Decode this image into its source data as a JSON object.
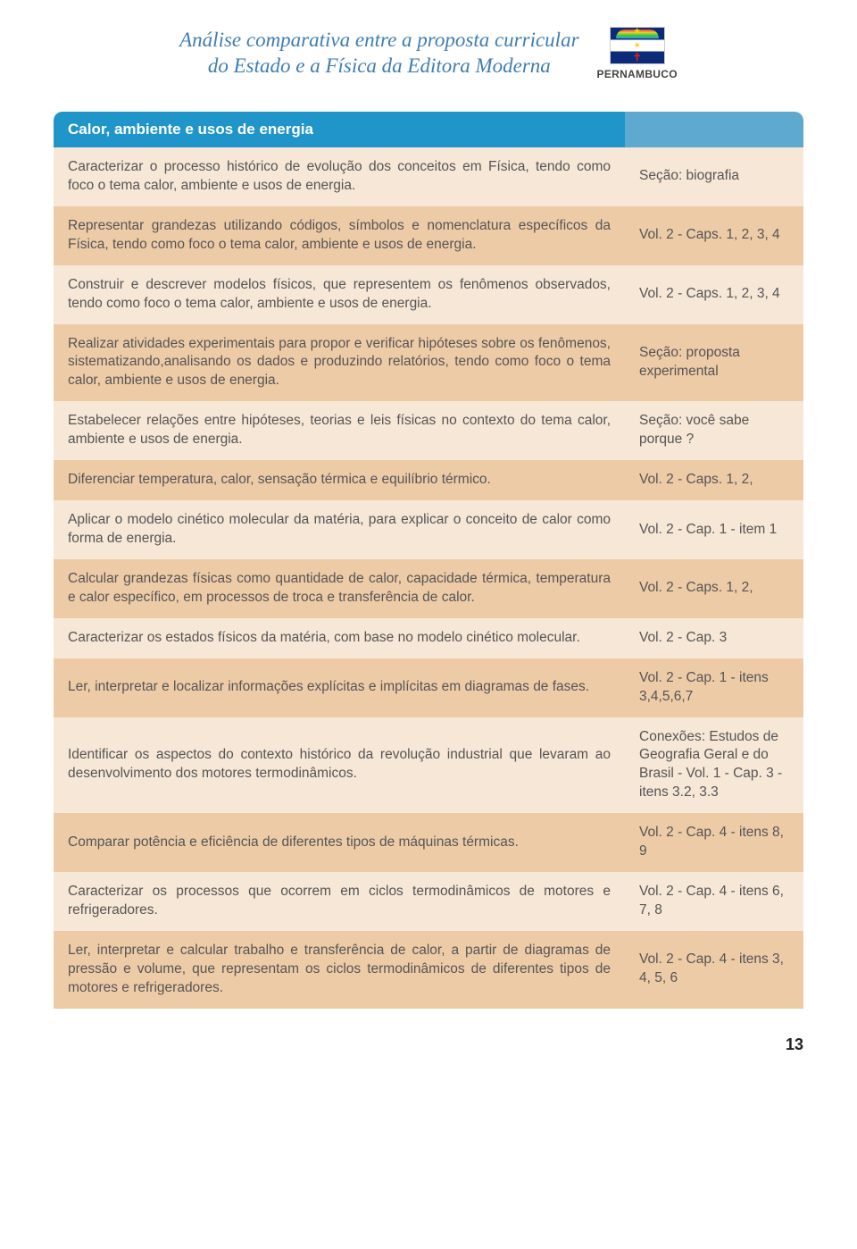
{
  "header": {
    "title_line1": "Análise comparativa entre a proposta curricular",
    "title_line2": "do Estado e a Física da Editora Moderna",
    "state_label": "PERNAMBUCO"
  },
  "section_title": "Calor, ambiente e usos de energia",
  "colors": {
    "header_bg": "#1f95c9",
    "header_right_bg": "#5ea9cf",
    "row_light": "#f7e7d6",
    "row_dark": "#eecba7",
    "text": "#555555",
    "title_color": "#3e7db3"
  },
  "rows": [
    {
      "left": "Caracterizar o processo histórico de evolução dos conceitos em Física, tendo como foco o tema calor, ambiente e usos de energia.",
      "right": "Seção: biografia",
      "shade": "light"
    },
    {
      "left": "Representar grandezas utilizando códigos, símbolos e nomenclatura específicos da Física, tendo como foco o tema calor, ambiente e usos de energia.",
      "right": "Vol. 2 - Caps. 1, 2, 3, 4",
      "shade": "dark"
    },
    {
      "left": "Construir e descrever modelos físicos, que representem os fenômenos observados, tendo como foco o tema calor, ambiente e usos de energia.",
      "right": "Vol. 2 - Caps. 1, 2, 3, 4",
      "shade": "light"
    },
    {
      "left": "Realizar atividades experimentais para propor e verificar hipóteses sobre os fenômenos, sistematizando,analisando os dados e produzindo relatórios, tendo como foco o tema calor, ambiente e usos de energia.",
      "right": "Seção: proposta experimental",
      "shade": "dark"
    },
    {
      "left": "Estabelecer relações entre hipóteses, teorias e leis físicas no contexto do tema calor, ambiente e usos de energia.",
      "right": "Seção: você sabe porque ?",
      "shade": "light"
    },
    {
      "left": "Diferenciar temperatura, calor, sensação térmica e equilíbrio térmico.",
      "right": "Vol. 2 - Caps. 1, 2,",
      "shade": "dark"
    },
    {
      "left": "Aplicar o modelo cinético molecular da matéria, para explicar o conceito de calor como forma de energia.",
      "right": "Vol. 2 - Cap. 1 - item 1",
      "shade": "light"
    },
    {
      "left": "Calcular grandezas físicas como quantidade de calor, capacidade térmica, temperatura e calor específico, em processos de troca e transferência de calor.",
      "right": "Vol. 2 - Caps. 1, 2,",
      "shade": "dark"
    },
    {
      "left": "Caracterizar os estados físicos da matéria, com base no modelo cinético molecular.",
      "right": "Vol. 2 - Cap. 3",
      "shade": "light"
    },
    {
      "left": "Ler, interpretar e localizar informações explícitas e implícitas em diagramas de fases.",
      "right": "Vol. 2 - Cap. 1 - itens 3,4,5,6,7",
      "shade": "dark"
    },
    {
      "left": "Identificar os aspectos do contexto histórico da revolução industrial que levaram ao desenvolvimento dos motores termodinâmicos.",
      "right": "Conexões: Estudos de Geografia Geral e do Brasil - Vol. 1 - Cap. 3 - itens 3.2, 3.3",
      "shade": "light"
    },
    {
      "left": "Comparar potência e eficiência de diferentes tipos de máquinas térmicas.",
      "right": "Vol. 2 - Cap. 4 - itens 8, 9",
      "shade": "dark"
    },
    {
      "left": "Caracterizar os processos que ocorrem em ciclos termodinâmicos de motores e refrigeradores.",
      "right": "Vol. 2 - Cap. 4 - itens 6, 7, 8",
      "shade": "light"
    },
    {
      "left": "Ler, interpretar e calcular trabalho e transferência de calor, a partir de diagramas de pressão e volume, que representam os ciclos termodinâmicos de diferentes tipos de motores e refrigeradores.",
      "right": "Vol. 2 - Cap. 4 - itens 3, 4, 5, 6",
      "shade": "dark"
    }
  ],
  "page_number": "13"
}
